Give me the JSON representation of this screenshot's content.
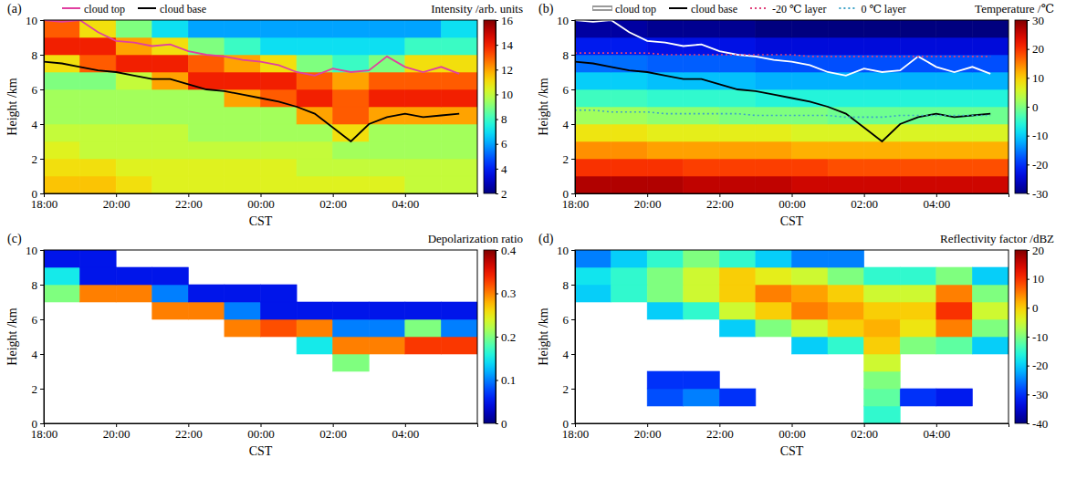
{
  "chart_data": [
    {
      "type": "heatmap",
      "title": "(a)",
      "colorbar_title": "Intensity /arb. units",
      "x_label": "CST",
      "y_label": "Height /km",
      "xlim": [
        18,
        30
      ],
      "ylim": [
        0,
        10
      ],
      "xticks": [
        {
          "value": 18,
          "label": "18:00"
        },
        {
          "value": 20,
          "label": "20:00"
        },
        {
          "value": 22,
          "label": "22:00"
        },
        {
          "value": 24,
          "label": "00:00"
        },
        {
          "value": 26,
          "label": "02:00"
        },
        {
          "value": 28,
          "label": "04:00"
        }
      ],
      "yticks": [
        0,
        2,
        4,
        6,
        8,
        10
      ],
      "zlim": [
        2,
        16
      ],
      "zticks": [
        2,
        4,
        6,
        8,
        10,
        12,
        14,
        16
      ],
      "x_bins": [
        18,
        19,
        20,
        21,
        22,
        23,
        24,
        25,
        26,
        27,
        28,
        29,
        30
      ],
      "y_bins": [
        0,
        1,
        2,
        3,
        4,
        5,
        6,
        7,
        8,
        9,
        10
      ],
      "z": [
        [
          11.5,
          11.5,
          11,
          10.5,
          10.5,
          10.5,
          10.5,
          10.5,
          10.5,
          10.5,
          10,
          10
        ],
        [
          11,
          11,
          10.5,
          10.5,
          10.5,
          10.5,
          10.5,
          10,
          10,
          10,
          10,
          10
        ],
        [
          10.5,
          10,
          10,
          10,
          10,
          10,
          10,
          10,
          9.5,
          9.5,
          9.5,
          9.5
        ],
        [
          10,
          10,
          10,
          10,
          9.5,
          9.5,
          9.5,
          9.5,
          11,
          9.5,
          9.5,
          9.5
        ],
        [
          9.5,
          9.5,
          9.5,
          9.5,
          9.5,
          9.5,
          9.5,
          12,
          13,
          12,
          12,
          12
        ],
        [
          9.5,
          9.5,
          9.5,
          9.5,
          9.5,
          12,
          13,
          14,
          13,
          14,
          14,
          14
        ],
        [
          9,
          9,
          10,
          12,
          14,
          14,
          14,
          13,
          12,
          13,
          13,
          13
        ],
        [
          11,
          13,
          14,
          14,
          13,
          12,
          11,
          9,
          8,
          9,
          11,
          11
        ],
        [
          14,
          14,
          12,
          11,
          9,
          8,
          7,
          7,
          7,
          7,
          8,
          8
        ],
        [
          13,
          11,
          9,
          7,
          6,
          6,
          6,
          6,
          6,
          6,
          6,
          7
        ]
      ],
      "x": [
        18,
        18.5,
        19,
        19.5,
        20,
        20.5,
        21,
        21.5,
        22,
        22.5,
        23,
        23.5,
        24,
        24.5,
        25,
        25.5,
        26,
        26.5,
        27,
        27.5,
        28,
        28.5,
        29,
        29.5
      ],
      "legend": "top",
      "series": [
        {
          "name": "cloud top",
          "color": "#e040a0",
          "line_style": "solid",
          "values": [
            10,
            9.9,
            10,
            9.3,
            8.8,
            8.7,
            8.5,
            8.6,
            8.2,
            8,
            7.9,
            7.7,
            7.6,
            7.4,
            7,
            6.8,
            7.2,
            7,
            7.1,
            7.9,
            7.3,
            7,
            7.3,
            6.9
          ]
        },
        {
          "name": "cloud base",
          "color": "#000000",
          "line_style": "solid",
          "values": [
            7.6,
            7.5,
            7.3,
            7.1,
            7,
            6.8,
            6.6,
            6.6,
            6.3,
            6,
            5.9,
            5.7,
            5.5,
            5.3,
            5,
            4.6,
            3.8,
            3,
            4,
            4.4,
            4.6,
            4.4,
            4.5,
            4.6
          ]
        }
      ]
    },
    {
      "type": "heatmap",
      "title": "(b)",
      "colorbar_title": "Temperature /℃",
      "x_label": "CST",
      "y_label": "Height /km",
      "xlim": [
        18,
        30
      ],
      "ylim": [
        0,
        10
      ],
      "xticks": [
        {
          "value": 18,
          "label": "18:00"
        },
        {
          "value": 20,
          "label": "20:00"
        },
        {
          "value": 22,
          "label": "22:00"
        },
        {
          "value": 24,
          "label": "00:00"
        },
        {
          "value": 26,
          "label": "02:00"
        },
        {
          "value": 28,
          "label": "04:00"
        }
      ],
      "yticks": [
        0,
        2,
        4,
        6,
        8,
        10
      ],
      "zlim": [
        -30,
        30
      ],
      "zticks": [
        -30,
        -20,
        -10,
        0,
        10,
        20,
        30
      ],
      "x_bins": [
        18,
        19,
        20,
        21,
        22,
        23,
        24,
        25,
        26,
        27,
        28,
        29,
        30
      ],
      "y_bins": [
        0,
        1,
        2,
        3,
        4,
        5,
        6,
        7,
        8,
        9,
        10
      ],
      "z": [
        [
          27,
          27,
          27,
          26,
          26,
          26,
          25,
          25,
          25,
          25,
          25,
          25
        ],
        [
          20,
          20,
          20,
          19,
          19,
          19,
          19,
          18,
          18,
          18,
          18,
          18
        ],
        [
          14,
          14,
          13,
          13,
          13,
          13,
          12,
          12,
          12,
          12,
          12,
          12
        ],
        [
          8,
          8,
          7,
          7,
          7,
          7,
          6,
          6,
          6,
          6,
          6,
          6
        ],
        [
          2,
          2,
          1,
          1,
          0,
          0,
          0,
          -1,
          -1,
          -1,
          -1,
          -1
        ],
        [
          -4,
          -4,
          -5,
          -5,
          -5,
          -6,
          -6,
          -6,
          -6,
          -6,
          -6,
          -6
        ],
        [
          -10,
          -10,
          -11,
          -11,
          -11,
          -12,
          -12,
          -12,
          -12,
          -12,
          -12,
          -12
        ],
        [
          -16,
          -16,
          -17,
          -17,
          -17,
          -18,
          -18,
          -18,
          -18,
          -18,
          -18,
          -18
        ],
        [
          -22,
          -22,
          -23,
          -23,
          -23,
          -24,
          -24,
          -24,
          -24,
          -24,
          -24,
          -24
        ],
        [
          -28,
          -28,
          -29,
          -29,
          -29,
          -30,
          -30,
          -30,
          -30,
          -30,
          -30,
          -30
        ]
      ],
      "x": [
        18,
        18.5,
        19,
        19.5,
        20,
        20.5,
        21,
        21.5,
        22,
        22.5,
        23,
        23.5,
        24,
        24.5,
        25,
        25.5,
        26,
        26.5,
        27,
        27.5,
        28,
        28.5,
        29,
        29.5
      ],
      "legend": "top",
      "series": [
        {
          "name": "cloud top",
          "color": "#ffffff",
          "line_style": "solid",
          "values": [
            10,
            9.9,
            10,
            9.3,
            8.8,
            8.7,
            8.5,
            8.6,
            8.2,
            8,
            7.9,
            7.7,
            7.6,
            7.4,
            7,
            6.8,
            7.2,
            7,
            7.1,
            7.9,
            7.3,
            7,
            7.3,
            6.9
          ]
        },
        {
          "name": "cloud base",
          "color": "#000000",
          "line_style": "solid",
          "values": [
            7.6,
            7.5,
            7.3,
            7.1,
            7,
            6.8,
            6.6,
            6.6,
            6.3,
            6,
            5.9,
            5.7,
            5.5,
            5.3,
            5,
            4.6,
            3.8,
            3,
            4,
            4.4,
            4.6,
            4.4,
            4.5,
            4.6
          ]
        },
        {
          "name": "-20 ℃ layer",
          "color": "#e0407a",
          "line_style": "dotted",
          "values": [
            8.1,
            8.1,
            8.1,
            8.1,
            8.1,
            8,
            8,
            8,
            8,
            8,
            8,
            8,
            8,
            7.9,
            7.9,
            7.9,
            7.9,
            7.9,
            7.9,
            7.9,
            7.9,
            7.9,
            7.9,
            7.9
          ]
        },
        {
          "name": "0 ℃ layer",
          "color": "#3fa3c8",
          "line_style": "dotted",
          "values": [
            4.8,
            4.8,
            4.7,
            4.7,
            4.7,
            4.6,
            4.6,
            4.6,
            4.6,
            4.6,
            4.5,
            4.5,
            4.5,
            4.5,
            4.5,
            4.4,
            4.4,
            4.4,
            4.5,
            4.5,
            4.5,
            4.5,
            4.5,
            4.5
          ]
        }
      ]
    },
    {
      "type": "heatmap",
      "title": "(c)",
      "colorbar_title": "Depolarization ratio",
      "x_label": "CST",
      "y_label": "Height /km",
      "xlim": [
        18,
        30
      ],
      "ylim": [
        0,
        10
      ],
      "xticks": [
        {
          "value": 18,
          "label": "18:00"
        },
        {
          "value": 20,
          "label": "20:00"
        },
        {
          "value": 22,
          "label": "22:00"
        },
        {
          "value": 24,
          "label": "00:00"
        },
        {
          "value": 26,
          "label": "02:00"
        },
        {
          "value": 28,
          "label": "04:00"
        }
      ],
      "yticks": [
        0,
        2,
        4,
        6,
        8,
        10
      ],
      "zlim": [
        0,
        0.4
      ],
      "zticks": [
        0,
        0.1,
        0.2,
        0.3,
        0.4
      ],
      "x_bins": [
        18,
        19,
        20,
        21,
        22,
        23,
        24,
        25,
        26,
        27,
        28,
        29,
        30
      ],
      "y_bins": [
        0,
        1,
        2,
        3,
        4,
        5,
        6,
        7,
        8,
        9,
        10
      ],
      "z": [
        [
          null,
          null,
          null,
          null,
          null,
          null,
          null,
          null,
          null,
          null,
          null,
          null
        ],
        [
          null,
          null,
          null,
          null,
          null,
          null,
          null,
          null,
          null,
          null,
          null,
          null
        ],
        [
          null,
          null,
          null,
          null,
          null,
          null,
          null,
          null,
          null,
          null,
          null,
          null
        ],
        [
          null,
          null,
          null,
          null,
          null,
          null,
          null,
          null,
          0.2,
          null,
          null,
          null
        ],
        [
          null,
          null,
          null,
          null,
          null,
          null,
          null,
          0.15,
          0.3,
          0.3,
          0.33,
          0.33
        ],
        [
          null,
          null,
          null,
          null,
          null,
          0.3,
          0.32,
          0.3,
          0.1,
          0.1,
          0.2,
          0.1
        ],
        [
          null,
          null,
          null,
          0.3,
          0.3,
          0.1,
          0.05,
          0.05,
          0.05,
          0.05,
          0.05,
          0.05
        ],
        [
          0.2,
          0.3,
          0.3,
          0.1,
          0.05,
          0.05,
          0.05,
          null,
          null,
          null,
          null,
          null
        ],
        [
          0.15,
          0.05,
          0.05,
          0.05,
          null,
          null,
          null,
          null,
          null,
          null,
          null,
          null
        ],
        [
          0.05,
          0.05,
          null,
          null,
          null,
          null,
          null,
          null,
          null,
          null,
          null,
          null
        ]
      ]
    },
    {
      "type": "heatmap",
      "title": "(d)",
      "colorbar_title": "Reflectivity factor /dBZ",
      "x_label": "CST",
      "y_label": "Height /km",
      "xlim": [
        18,
        30
      ],
      "ylim": [
        0,
        10
      ],
      "xticks": [
        {
          "value": 18,
          "label": "18:00"
        },
        {
          "value": 20,
          "label": "20:00"
        },
        {
          "value": 22,
          "label": "22:00"
        },
        {
          "value": 24,
          "label": "00:00"
        },
        {
          "value": 26,
          "label": "02:00"
        },
        {
          "value": 28,
          "label": "04:00"
        }
      ],
      "yticks": [
        0,
        2,
        4,
        6,
        8,
        10
      ],
      "zlim": [
        -40,
        20
      ],
      "zticks": [
        -40,
        -30,
        -20,
        -10,
        0,
        10,
        20
      ],
      "x_bins": [
        18,
        19,
        20,
        21,
        22,
        23,
        24,
        25,
        26,
        27,
        28,
        29,
        30
      ],
      "y_bins": [
        0,
        1,
        2,
        3,
        4,
        5,
        6,
        7,
        8,
        9,
        10
      ],
      "z": [
        [
          null,
          null,
          null,
          null,
          null,
          null,
          null,
          null,
          -15,
          null,
          null,
          null
        ],
        [
          null,
          null,
          -28,
          -25,
          -30,
          null,
          null,
          null,
          -12,
          -30,
          -32,
          null
        ],
        [
          null,
          null,
          -30,
          -30,
          null,
          null,
          null,
          null,
          -10,
          null,
          null,
          null
        ],
        [
          null,
          null,
          null,
          null,
          null,
          null,
          null,
          null,
          -5,
          null,
          null,
          null
        ],
        [
          null,
          null,
          null,
          null,
          null,
          null,
          -20,
          -15,
          0,
          -10,
          -12,
          -20
        ],
        [
          null,
          null,
          null,
          null,
          -20,
          -10,
          -5,
          0,
          2,
          -2,
          5,
          -10
        ],
        [
          null,
          null,
          -20,
          -15,
          -5,
          0,
          5,
          3,
          0,
          0,
          10,
          -5
        ],
        [
          -20,
          -15,
          -10,
          -5,
          0,
          5,
          3,
          0,
          -5,
          -5,
          5,
          -10
        ],
        [
          -18,
          -15,
          -10,
          -5,
          0,
          -3,
          -5,
          -10,
          -15,
          -15,
          -10,
          -20
        ],
        [
          -25,
          -20,
          -15,
          -10,
          -15,
          -20,
          -25,
          -25,
          null,
          null,
          null,
          null
        ]
      ]
    }
  ]
}
